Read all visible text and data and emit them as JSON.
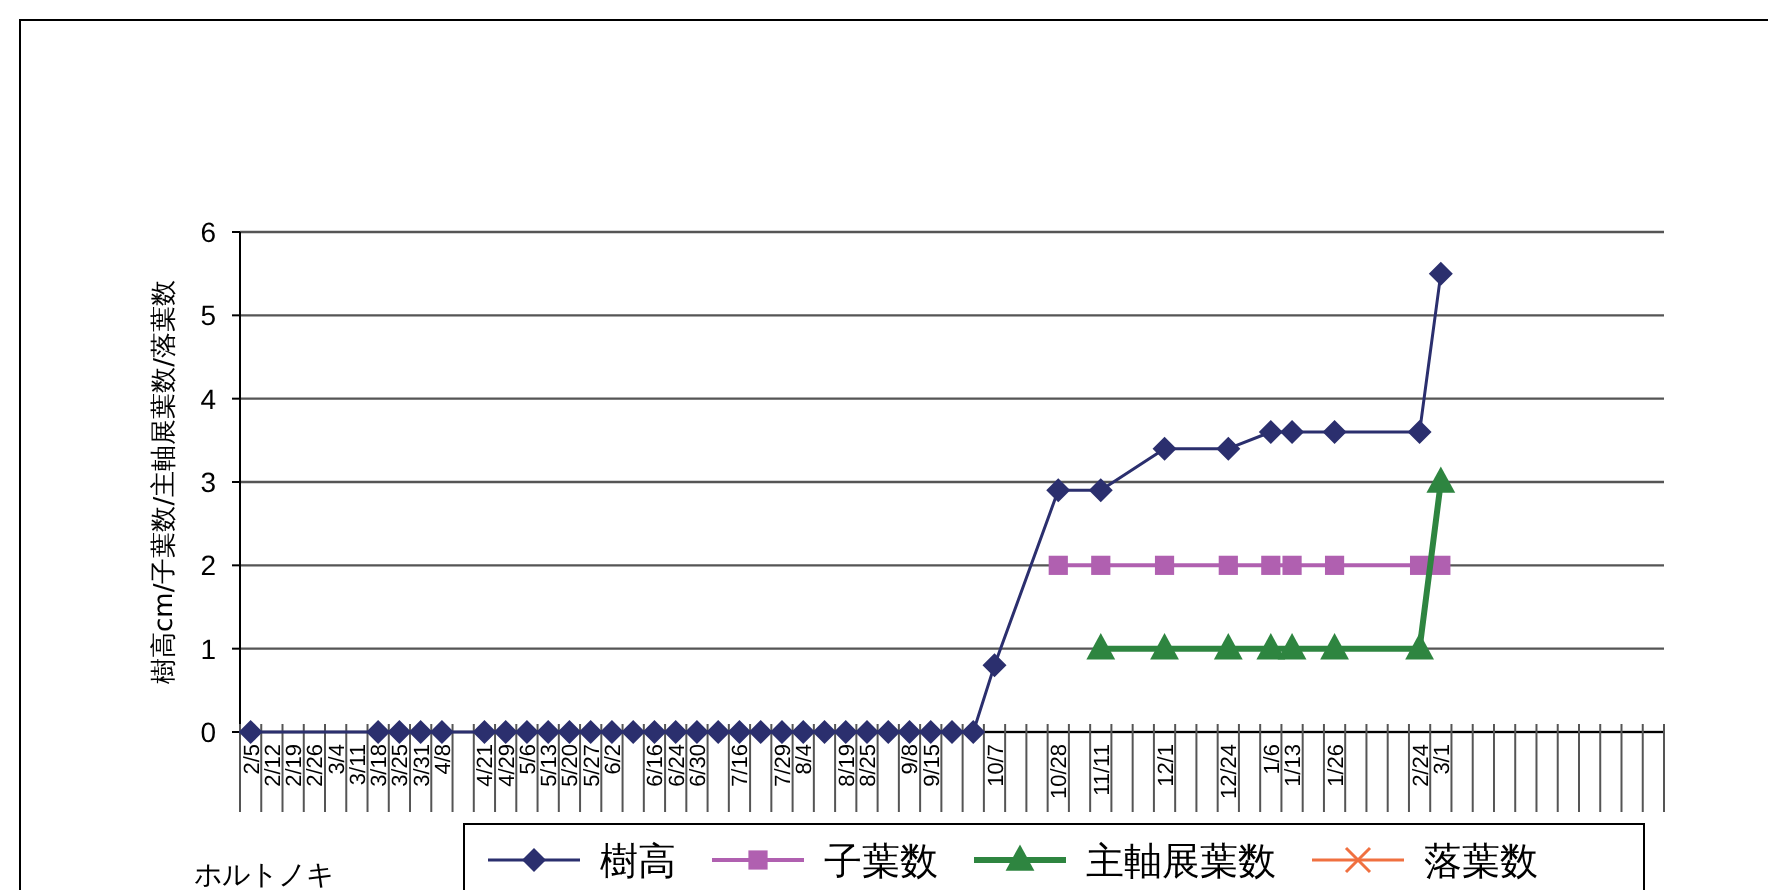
{
  "chart_data": {
    "type": "line",
    "ylabel": "樹高cm/子葉数/主軸展葉数/落葉数",
    "categories": [
      "2/5",
      "2/12",
      "2/19",
      "2/26",
      "3/4",
      "3/11",
      "3/18",
      "3/25",
      "3/31",
      "4/8",
      null,
      "4/21",
      "4/29",
      "5/6",
      "5/13",
      "5/20",
      "5/27",
      "6/2",
      null,
      "6/16",
      "6/24",
      "6/30",
      null,
      "7/16",
      null,
      "7/29",
      "8/4",
      null,
      "8/19",
      "8/25",
      null,
      "9/8",
      "9/15",
      null,
      null,
      "10/7",
      null,
      null,
      "10/28",
      null,
      "11/11",
      null,
      null,
      "12/1",
      null,
      null,
      "12/24",
      null,
      "1/6",
      "1/13",
      null,
      "1/26",
      null,
      null,
      null,
      "2/24",
      "3/1",
      null,
      null,
      null,
      null,
      null,
      null,
      null,
      null,
      null,
      null
    ],
    "series": [
      {
        "name": "樹高",
        "color": "#2b2f6e",
        "marker": "diamond",
        "values": [
          0,
          null,
          null,
          null,
          null,
          null,
          0,
          0,
          0,
          0,
          null,
          0,
          0,
          0,
          0,
          0,
          0,
          0,
          0,
          0,
          0,
          0,
          0,
          0,
          0,
          0,
          0,
          0,
          0,
          0,
          0,
          0,
          0,
          0,
          0,
          0.8,
          null,
          null,
          2.9,
          null,
          2.9,
          null,
          null,
          3.4,
          null,
          null,
          3.4,
          null,
          3.6,
          3.6,
          null,
          3.6,
          null,
          null,
          null,
          3.6,
          5.5,
          null,
          null,
          null,
          null,
          null,
          null,
          null,
          null,
          null,
          null
        ]
      },
      {
        "name": "子葉数",
        "color": "#b060b0",
        "marker": "square",
        "values": [
          null,
          null,
          null,
          null,
          null,
          null,
          null,
          null,
          null,
          null,
          null,
          null,
          null,
          null,
          null,
          null,
          null,
          null,
          null,
          null,
          null,
          null,
          null,
          null,
          null,
          null,
          null,
          null,
          null,
          null,
          null,
          null,
          null,
          null,
          null,
          null,
          null,
          null,
          2,
          null,
          2,
          null,
          null,
          2,
          null,
          null,
          2,
          null,
          2,
          2,
          null,
          2,
          null,
          null,
          null,
          2,
          2,
          null,
          null,
          null,
          null,
          null,
          null,
          null,
          null,
          null,
          null
        ]
      },
      {
        "name": "主軸展葉数",
        "color": "#2e8540",
        "marker": "triangle",
        "values": [
          null,
          null,
          null,
          null,
          null,
          null,
          null,
          null,
          null,
          null,
          null,
          null,
          null,
          null,
          null,
          null,
          null,
          null,
          null,
          null,
          null,
          null,
          null,
          null,
          null,
          null,
          null,
          null,
          null,
          null,
          null,
          null,
          null,
          null,
          null,
          null,
          null,
          null,
          null,
          null,
          1,
          null,
          null,
          1,
          null,
          null,
          1,
          null,
          1,
          1,
          null,
          1,
          null,
          null,
          null,
          1,
          3,
          null,
          null,
          null,
          null,
          null,
          null,
          null,
          null,
          null,
          null
        ]
      },
      {
        "name": "落葉数",
        "color": "#f07040",
        "marker": "cross",
        "values": [
          null,
          null,
          null,
          null,
          null,
          null,
          null,
          null,
          null,
          null,
          null,
          null,
          null,
          null,
          null,
          null,
          null,
          null,
          null,
          null,
          null,
          null,
          null,
          null,
          null,
          null,
          null,
          null,
          null,
          null,
          null,
          null,
          null,
          null,
          null,
          null,
          null,
          null,
          null,
          null,
          null,
          null,
          null,
          null,
          null,
          null,
          null,
          null,
          null,
          null,
          null,
          null,
          null,
          null,
          null,
          null,
          null,
          null,
          null,
          null,
          null,
          null,
          null,
          null,
          null,
          null,
          null
        ]
      }
    ],
    "ylim": [
      0,
      6
    ],
    "yticks": [
      0,
      1,
      2,
      3,
      4,
      5,
      6
    ],
    "grid": "y",
    "legend": "bottom",
    "annotations": [
      "ホルトノキ"
    ]
  }
}
